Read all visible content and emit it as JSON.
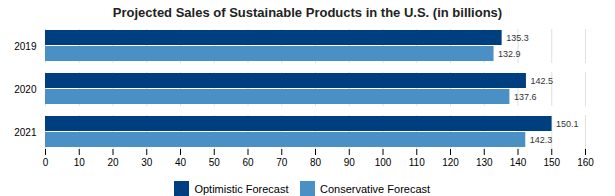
{
  "chart_data": {
    "type": "bar",
    "orientation": "horizontal",
    "title": "Projected Sales of Sustainable Products in the U.S. (in billions)",
    "categories": [
      "2021",
      "2020",
      "2019"
    ],
    "series": [
      {
        "name": "Optimistic Forecast",
        "color": "#003f7f",
        "values": [
          150.1,
          142.5,
          135.3
        ]
      },
      {
        "name": "Conservative Forecast",
        "color": "#4a90c4",
        "values": [
          142.3,
          137.6,
          132.9
        ]
      }
    ],
    "xlim": [
      0,
      160
    ],
    "xticks": [
      0,
      10,
      20,
      30,
      40,
      50,
      60,
      70,
      80,
      90,
      100,
      110,
      120,
      130,
      140,
      150,
      160
    ],
    "grid": true,
    "data_labels": true,
    "legend": "bottom"
  }
}
